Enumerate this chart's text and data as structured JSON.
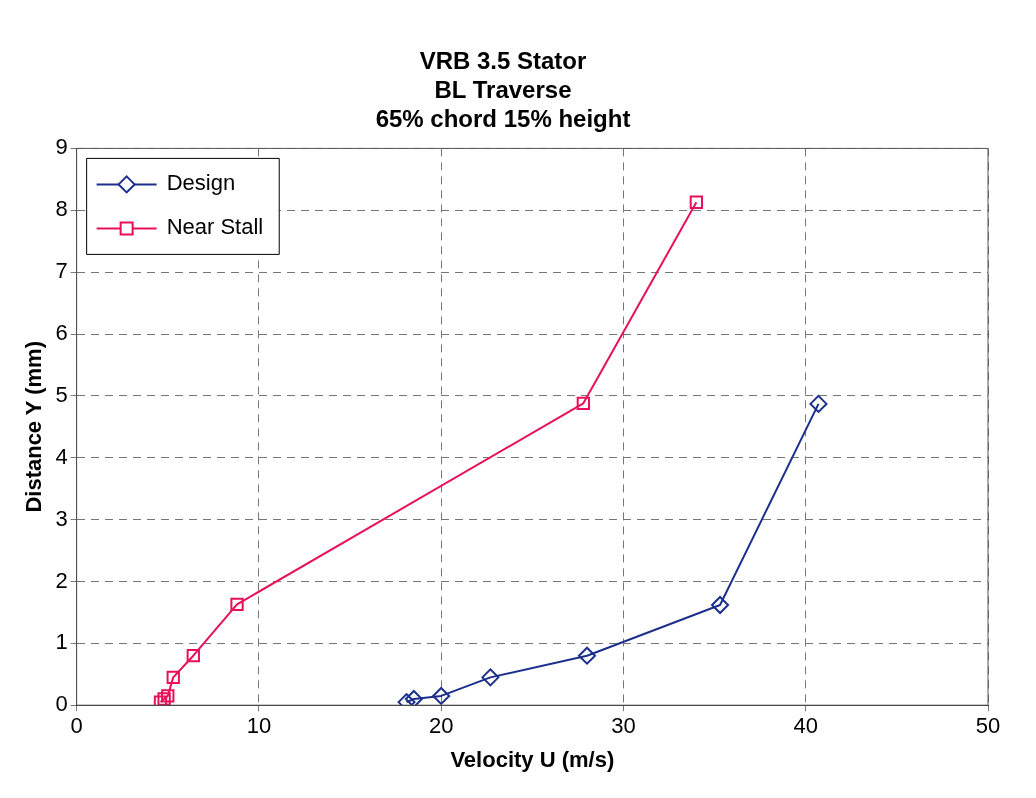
{
  "chart_data": {
    "type": "line",
    "title": [
      "VRB 3.5 Stator",
      "BL Traverse",
      "65% chord 15% height"
    ],
    "xlabel": "Velocity U (m/s)",
    "ylabel": "Distance Y (mm)",
    "xlim": [
      0,
      50
    ],
    "xticks": [
      0,
      10,
      20,
      30,
      40,
      50
    ],
    "ylim": [
      0,
      9
    ],
    "yticks": [
      0,
      1,
      2,
      3,
      4,
      5,
      6,
      7,
      8,
      9
    ],
    "grid": true,
    "legend": "top left",
    "line_style": "solid",
    "series": [
      {
        "name": "Design",
        "color": "#1c2f8c",
        "marker": "diamond",
        "x": [
          18.1,
          18.5,
          20,
          22.7,
          28,
          35.3,
          40.7
        ],
        "values": [
          0.05,
          0.1,
          0.15,
          0.45,
          0.8,
          1.62,
          4.87
        ]
      },
      {
        "name": "Near Stall",
        "color": "#e8105a",
        "marker": "square",
        "x": [
          4.6,
          4.8,
          5,
          5.3,
          6.4,
          8.8,
          27.8,
          34
        ],
        "values": [
          0.05,
          0.1,
          0.15,
          0.45,
          0.8,
          1.63,
          4.88,
          8.13
        ]
      }
    ]
  }
}
